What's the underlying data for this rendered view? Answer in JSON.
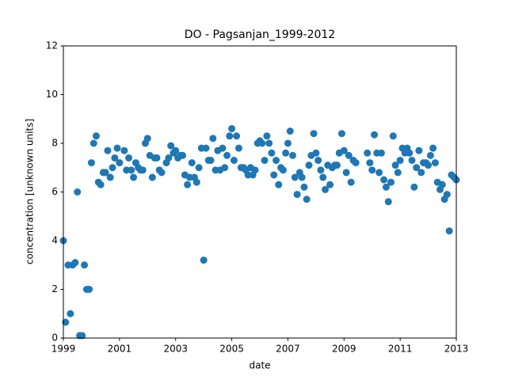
{
  "chart_data": {
    "type": "scatter",
    "title": "DO - Pagsanjan_1999-2012",
    "xlabel": "date",
    "ylabel": "concentration [unknown units]",
    "color": "#1f77b4",
    "xlim": [
      1999,
      2013
    ],
    "xticks": [
      1999,
      2001,
      2003,
      2005,
      2007,
      2009,
      2011,
      2013
    ],
    "ylim": [
      0,
      12
    ],
    "yticks": [
      0,
      2,
      4,
      6,
      8,
      10,
      12
    ],
    "grid": false,
    "x": [
      1999.0,
      1999.08,
      1999.17,
      1999.25,
      1999.33,
      1999.42,
      1999.5,
      1999.58,
      1999.67,
      1999.75,
      1999.83,
      1999.92,
      2000.0,
      2000.08,
      2000.17,
      2000.25,
      2000.33,
      2000.42,
      2000.5,
      2000.58,
      2000.67,
      2000.75,
      2000.83,
      2000.92,
      2001.0,
      2001.17,
      2001.25,
      2001.33,
      2001.42,
      2001.5,
      2001.58,
      2001.67,
      2001.75,
      2001.83,
      2001.92,
      2002.0,
      2002.08,
      2002.17,
      2002.25,
      2002.33,
      2002.42,
      2002.5,
      2002.67,
      2002.75,
      2002.83,
      2002.92,
      2003.0,
      2003.08,
      2003.17,
      2003.25,
      2003.33,
      2003.42,
      2003.5,
      2003.58,
      2003.67,
      2003.75,
      2003.83,
      2003.92,
      2004.0,
      2004.08,
      2004.17,
      2004.25,
      2004.33,
      2004.42,
      2004.5,
      2004.58,
      2004.67,
      2004.75,
      2004.83,
      2004.92,
      2005.0,
      2005.08,
      2005.17,
      2005.25,
      2005.33,
      2005.42,
      2005.5,
      2005.58,
      2005.67,
      2005.75,
      2005.83,
      2005.92,
      2006.0,
      2006.08,
      2006.17,
      2006.25,
      2006.33,
      2006.42,
      2006.5,
      2006.58,
      2006.67,
      2006.75,
      2006.83,
      2006.92,
      2007.0,
      2007.08,
      2007.17,
      2007.25,
      2007.33,
      2007.42,
      2007.5,
      2007.58,
      2007.67,
      2007.75,
      2007.83,
      2007.92,
      2008.0,
      2008.08,
      2008.17,
      2008.25,
      2008.33,
      2008.42,
      2008.5,
      2008.58,
      2008.67,
      2008.75,
      2008.83,
      2008.92,
      2009.0,
      2009.08,
      2009.17,
      2009.25,
      2009.33,
      2009.42,
      2009.83,
      2009.92,
      2010.0,
      2010.08,
      2010.17,
      2010.25,
      2010.33,
      2010.42,
      2010.5,
      2010.58,
      2010.67,
      2010.75,
      2010.83,
      2010.92,
      2011.0,
      2011.08,
      2011.17,
      2011.25,
      2011.33,
      2011.42,
      2011.5,
      2011.58,
      2011.67,
      2011.75,
      2011.83,
      2011.92,
      2012.0,
      2012.08,
      2012.17,
      2012.25,
      2012.33,
      2012.42,
      2012.5,
      2012.58,
      2012.67,
      2012.75,
      2012.83,
      2012.92,
      2013.0
    ],
    "values": [
      4.0,
      0.65,
      3.0,
      1.0,
      3.0,
      3.1,
      6.0,
      0.1,
      0.1,
      3.0,
      2.0,
      2.0,
      7.2,
      8.0,
      8.3,
      6.4,
      6.3,
      6.8,
      6.8,
      7.7,
      6.6,
      7.0,
      7.4,
      7.8,
      7.2,
      7.7,
      6.9,
      7.4,
      6.9,
      6.6,
      7.2,
      7.0,
      6.9,
      6.9,
      8.0,
      8.2,
      7.5,
      6.6,
      7.4,
      7.4,
      6.9,
      6.8,
      7.2,
      7.4,
      7.9,
      7.6,
      7.7,
      7.4,
      7.5,
      7.5,
      6.7,
      6.3,
      6.6,
      7.2,
      6.6,
      6.4,
      7.0,
      7.8,
      3.2,
      7.8,
      7.3,
      7.3,
      8.2,
      6.9,
      7.7,
      6.9,
      7.8,
      7.0,
      7.5,
      8.3,
      8.6,
      7.3,
      8.3,
      7.8,
      7.0,
      7.0,
      6.9,
      6.7,
      7.0,
      6.7,
      6.9,
      8.0,
      8.1,
      8.0,
      7.3,
      8.3,
      8.0,
      7.6,
      6.7,
      7.3,
      6.3,
      7.0,
      6.9,
      7.6,
      8.0,
      8.5,
      7.5,
      6.6,
      5.9,
      6.8,
      6.6,
      6.2,
      5.7,
      7.1,
      7.5,
      8.4,
      7.6,
      7.3,
      6.9,
      6.6,
      6.1,
      7.1,
      6.3,
      7.0,
      7.1,
      7.1,
      7.6,
      8.4,
      7.7,
      6.8,
      7.5,
      6.4,
      7.3,
      7.2,
      7.6,
      7.2,
      6.9,
      8.35,
      7.6,
      6.8,
      7.6,
      6.5,
      6.2,
      5.6,
      6.4,
      8.3,
      7.1,
      6.8,
      7.3,
      7.8,
      7.6,
      7.8,
      7.6,
      7.3,
      6.2,
      7.0,
      7.7,
      6.8,
      7.2,
      7.2,
      7.1,
      7.5,
      7.8,
      7.2,
      6.4,
      6.1,
      6.3,
      5.7,
      5.9,
      4.4,
      6.7,
      6.6,
      6.5
    ]
  }
}
